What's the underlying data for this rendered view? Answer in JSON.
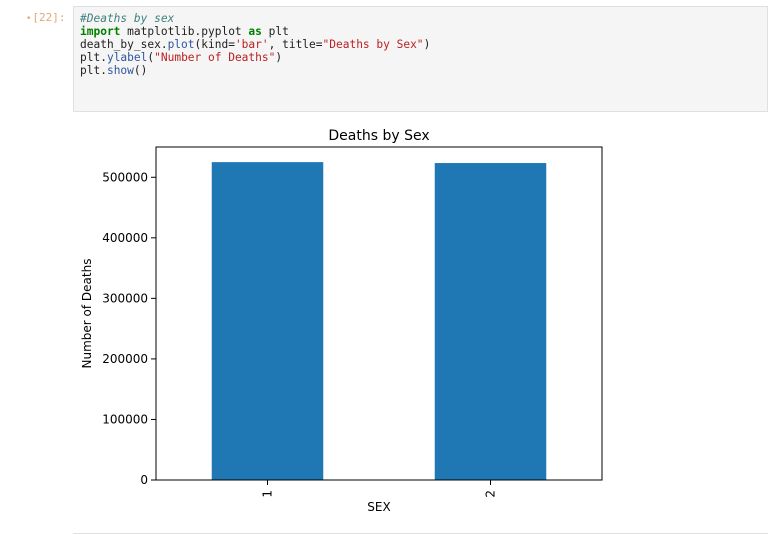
{
  "cell": {
    "prompt": "[22]:",
    "code_lines": [
      [
        {
          "t": "#Deaths by sex",
          "c": "comment"
        }
      ],
      [
        {
          "t": "import",
          "c": "kw"
        },
        {
          "t": " matplotlib.pyplot ",
          "c": ""
        },
        {
          "t": "as",
          "c": "kw"
        },
        {
          "t": " plt",
          "c": ""
        }
      ],
      [
        {
          "t": "death_by_sex.",
          "c": ""
        },
        {
          "t": "plot",
          "c": "name"
        },
        {
          "t": "(kind=",
          "c": ""
        },
        {
          "t": "'bar'",
          "c": "str"
        },
        {
          "t": ", title=",
          "c": ""
        },
        {
          "t": "\"Deaths by Sex\"",
          "c": "str"
        },
        {
          "t": ")",
          "c": ""
        }
      ],
      [
        {
          "t": "plt.",
          "c": ""
        },
        {
          "t": "ylabel",
          "c": "name"
        },
        {
          "t": "(",
          "c": ""
        },
        {
          "t": "\"Number of Deaths\"",
          "c": "str"
        },
        {
          "t": ")",
          "c": ""
        }
      ],
      [
        {
          "t": "plt.",
          "c": ""
        },
        {
          "t": "show",
          "c": "name"
        },
        {
          "t": "()",
          "c": ""
        }
      ]
    ]
  },
  "chart_data": {
    "type": "bar",
    "title": "Deaths by Sex",
    "xlabel": "SEX",
    "ylabel": "Number of Deaths",
    "categories": [
      "1",
      "2"
    ],
    "values": [
      525000,
      523500
    ],
    "ylim": [
      0,
      550000
    ],
    "yticks": [
      0,
      100000,
      200000,
      300000,
      400000,
      500000
    ],
    "color": "#1f77b4",
    "grid": false,
    "legend": "none"
  }
}
